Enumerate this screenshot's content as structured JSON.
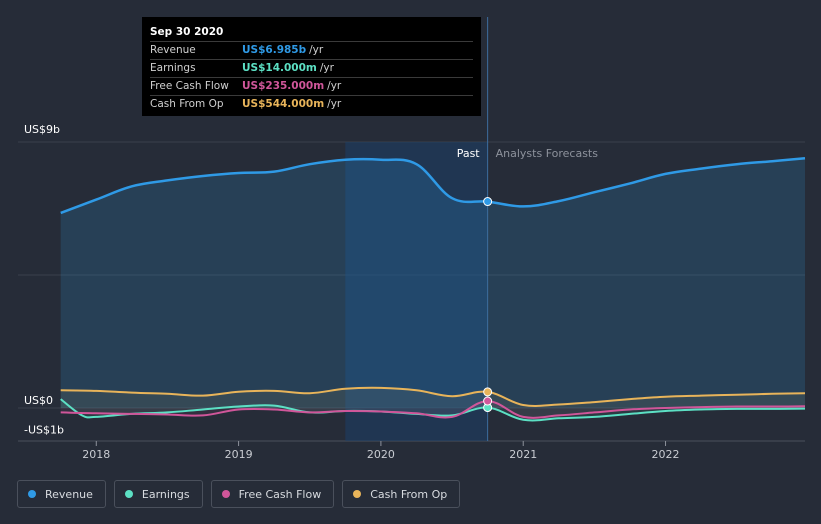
{
  "chart_data": {
    "type": "area",
    "y_unit_label": "/yr",
    "y_tick_labels": [
      "US$9b",
      "US$0",
      "-US$1b"
    ],
    "ylim": [
      -1,
      9
    ],
    "xlim": [
      2017.45,
      2022.98
    ],
    "x_ticks": [
      2018,
      2019,
      2020,
      2021,
      2022
    ],
    "x_tick_labels": [
      "2018",
      "2019",
      "2020",
      "2021",
      "2022"
    ],
    "grid": true,
    "past_label": "Past",
    "forecast_label": "Analysts Forecasts",
    "divider_x": 2020.75,
    "highlight_range": [
      2019.75,
      2020.75
    ],
    "series": [
      {
        "name": "Revenue",
        "color": "#2f9ae6",
        "fill": true,
        "x": [
          2017.75,
          2018.0,
          2018.25,
          2018.5,
          2018.75,
          2019.0,
          2019.25,
          2019.5,
          2019.75,
          2020.0,
          2020.25,
          2020.5,
          2020.75,
          2021.0,
          2021.25,
          2021.5,
          2021.75,
          2022.0,
          2022.25,
          2022.5,
          2022.75,
          2022.98
        ],
        "y": [
          6.6,
          7.05,
          7.5,
          7.7,
          7.85,
          7.95,
          8.0,
          8.25,
          8.4,
          8.4,
          8.25,
          7.1,
          6.985,
          6.82,
          7.0,
          7.3,
          7.6,
          7.92,
          8.1,
          8.25,
          8.35,
          8.45
        ]
      },
      {
        "name": "Earnings",
        "color": "#5ce0c4",
        "fill": false,
        "x": [
          2017.75,
          2017.9,
          2018.0,
          2018.25,
          2018.5,
          2018.75,
          2019.0,
          2019.25,
          2019.5,
          2019.75,
          2020.0,
          2020.25,
          2020.5,
          2020.75,
          2021.0,
          2021.25,
          2021.5,
          2021.75,
          2022.0,
          2022.25,
          2022.5,
          2022.75,
          2022.98
        ],
        "y": [
          0.3,
          -0.25,
          -0.3,
          -0.2,
          -0.15,
          -0.05,
          0.05,
          0.08,
          -0.15,
          -0.1,
          -0.12,
          -0.2,
          -0.25,
          0.014,
          -0.4,
          -0.35,
          -0.3,
          -0.2,
          -0.1,
          -0.05,
          -0.03,
          -0.03,
          -0.02
        ]
      },
      {
        "name": "Free Cash Flow",
        "color": "#d0569a",
        "fill": false,
        "x": [
          2017.75,
          2018.0,
          2018.25,
          2018.5,
          2018.75,
          2019.0,
          2019.25,
          2019.5,
          2019.75,
          2020.0,
          2020.25,
          2020.5,
          2020.75,
          2021.0,
          2021.25,
          2021.5,
          2021.75,
          2022.0,
          2022.25,
          2022.5,
          2022.75,
          2022.98
        ],
        "y": [
          -0.15,
          -0.18,
          -0.2,
          -0.22,
          -0.25,
          -0.05,
          -0.05,
          -0.15,
          -0.1,
          -0.12,
          -0.18,
          -0.3,
          0.235,
          -0.3,
          -0.25,
          -0.15,
          -0.05,
          0.0,
          0.03,
          0.05,
          0.05,
          0.06
        ]
      },
      {
        "name": "Cash From Op",
        "color": "#e8b45a",
        "fill": false,
        "x": [
          2017.75,
          2018.0,
          2018.25,
          2018.5,
          2018.75,
          2019.0,
          2019.25,
          2019.5,
          2019.75,
          2020.0,
          2020.25,
          2020.5,
          2020.75,
          2021.0,
          2021.25,
          2021.5,
          2021.75,
          2022.0,
          2022.25,
          2022.5,
          2022.75,
          2022.98
        ],
        "y": [
          0.6,
          0.58,
          0.52,
          0.48,
          0.42,
          0.55,
          0.58,
          0.5,
          0.65,
          0.68,
          0.6,
          0.4,
          0.544,
          0.1,
          0.12,
          0.2,
          0.3,
          0.38,
          0.42,
          0.45,
          0.48,
          0.5
        ]
      }
    ]
  },
  "tooltip": {
    "date": "Sep 30 2020",
    "unit": "/yr",
    "rows": [
      {
        "label": "Revenue",
        "value": "US$6.985b",
        "color": "#2f9ae6"
      },
      {
        "label": "Earnings",
        "value": "US$14.000m",
        "color": "#5ce0c4"
      },
      {
        "label": "Free Cash Flow",
        "value": "US$235.000m",
        "color": "#d0569a"
      },
      {
        "label": "Cash From Op",
        "value": "US$544.000m",
        "color": "#e8b45a"
      }
    ]
  },
  "legend": {
    "items": [
      {
        "label": "Revenue",
        "color": "#2f9ae6"
      },
      {
        "label": "Earnings",
        "color": "#5ce0c4"
      },
      {
        "label": "Free Cash Flow",
        "color": "#d0569a"
      },
      {
        "label": "Cash From Op",
        "color": "#e8b45a"
      }
    ]
  }
}
